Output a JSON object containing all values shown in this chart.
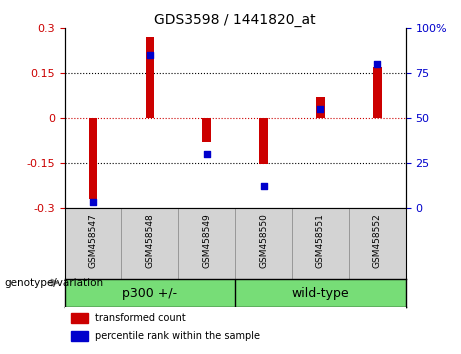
{
  "title": "GDS3598 / 1441820_at",
  "samples": [
    "GSM458547",
    "GSM458548",
    "GSM458549",
    "GSM458550",
    "GSM458551",
    "GSM458552"
  ],
  "red_values": [
    -0.27,
    0.27,
    -0.08,
    -0.155,
    0.07,
    0.17
  ],
  "blue_values": [
    3,
    85,
    30,
    12,
    55,
    80
  ],
  "ylim_left": [
    -0.3,
    0.3
  ],
  "ylim_right": [
    0,
    100
  ],
  "yticks_left": [
    -0.3,
    -0.15,
    0,
    0.15,
    0.3
  ],
  "yticks_right": [
    0,
    25,
    50,
    75,
    100
  ],
  "group_boundary": 3,
  "bar_width": 0.15,
  "dot_size": 25,
  "red_color": "#cc0000",
  "blue_color": "#0000cc",
  "zero_line_color": "#cc0000",
  "dotted_line_color": "#000000",
  "background_plot": "#ffffff",
  "background_label": "#d3d3d3",
  "background_group": "#77dd77",
  "legend_red_label": "transformed count",
  "legend_blue_label": "percentile rank within the sample",
  "genotype_label": "genotype/variation",
  "title_fontsize": 10,
  "tick_fontsize": 8,
  "sample_fontsize": 6.5,
  "group_fontsize": 9,
  "legend_fontsize": 7,
  "genotype_fontsize": 7.5
}
